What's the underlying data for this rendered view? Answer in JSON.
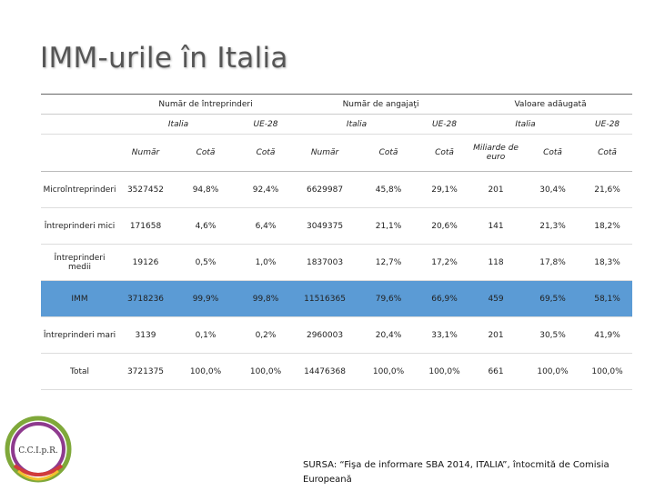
{
  "title": "IMM-urile în Italia",
  "table": {
    "groups": [
      "Număr de întreprinderi",
      "Număr de angajaţi",
      "Valoare adăugată"
    ],
    "regions": [
      "Italia",
      "UE-28",
      "Italia",
      "UE-28",
      "Italia",
      "UE-28"
    ],
    "columns": [
      "Număr",
      "Cotă",
      "Cotă",
      "Număr",
      "Cotă",
      "Cotă",
      "Miliarde de euro",
      "Cotă",
      "Cotă"
    ],
    "rows": [
      {
        "label": "Microîntreprinderi",
        "cells": [
          "3527452",
          "94,8%",
          "92,4%",
          "6629987",
          "45,8%",
          "29,1%",
          "201",
          "30,4%",
          "21,6%"
        ]
      },
      {
        "label": "Întreprinderi mici",
        "cells": [
          "171658",
          "4,6%",
          "6,4%",
          "3049375",
          "21,1%",
          "20,6%",
          "141",
          "21,3%",
          "18,2%"
        ]
      },
      {
        "label": "Întreprinderi medii",
        "cells": [
          "19126",
          "0,5%",
          "1,0%",
          "1837003",
          "12,7%",
          "17,2%",
          "118",
          "17,8%",
          "18,3%"
        ]
      },
      {
        "label": "IMM",
        "highlighted": true,
        "cells": [
          "3718236",
          "99,9%",
          "99,8%",
          "11516365",
          "79,6%",
          "66,9%",
          "459",
          "69,5%",
          "58,1%"
        ]
      },
      {
        "label": "Întreprinderi mari",
        "cells": [
          "3139",
          "0,1%",
          "0,2%",
          "2960003",
          "20,4%",
          "33,1%",
          "201",
          "30,5%",
          "41,9%"
        ]
      },
      {
        "label": "Total",
        "cells": [
          "3721375",
          "100,0%",
          "100,0%",
          "14476368",
          "100,0%",
          "100,0%",
          "661",
          "100,0%",
          "100,0%"
        ]
      }
    ]
  },
  "logo_text": "C.C.I.p.R.",
  "source": "SURSA: “Fişa de informare SBA 2014, ITALIA”, întocmită de Comisia Europeană"
}
